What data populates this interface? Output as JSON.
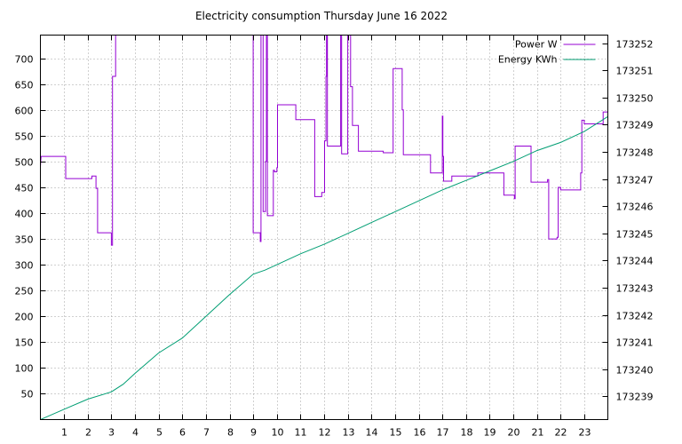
{
  "chart_data": {
    "type": "line",
    "title": "Electricity consumption Thursday June 16 2022",
    "xlabel": "",
    "ylabel": "",
    "y2label": "",
    "x_range": [
      0,
      24
    ],
    "x_ticks": [
      1,
      2,
      3,
      4,
      5,
      6,
      7,
      8,
      9,
      10,
      11,
      12,
      13,
      14,
      15,
      16,
      17,
      18,
      19,
      20,
      21,
      22,
      23
    ],
    "ylim": [
      0,
      745
    ],
    "y_ticks": [
      50,
      100,
      150,
      200,
      250,
      300,
      350,
      400,
      450,
      500,
      550,
      600,
      650,
      700
    ],
    "y2lim": [
      173238.15,
      173252.3
    ],
    "y2_ticks": [
      173239,
      173240,
      173241,
      173242,
      173243,
      173244,
      173245,
      173246,
      173247,
      173248,
      173249,
      173250,
      173251,
      173252
    ],
    "grid": true,
    "legend_position": "top-right",
    "series": [
      {
        "name": "Power W",
        "axis": "y1",
        "color": "#9400d3",
        "points": [
          [
            0,
            490
          ],
          [
            0.03,
            510
          ],
          [
            1.07,
            510
          ],
          [
            1.07,
            467
          ],
          [
            2.18,
            467
          ],
          [
            2.18,
            472
          ],
          [
            2.35,
            472
          ],
          [
            2.35,
            448
          ],
          [
            2.42,
            448
          ],
          [
            2.42,
            362
          ],
          [
            3.0,
            362
          ],
          [
            3.0,
            338
          ],
          [
            3.05,
            338
          ],
          [
            3.05,
            665
          ],
          [
            3.18,
            665
          ],
          [
            3.18,
            745
          ],
          [
            9.0,
            745
          ],
          [
            9.0,
            362
          ],
          [
            9.3,
            362
          ],
          [
            9.3,
            345
          ],
          [
            9.33,
            345
          ],
          [
            9.33,
            745
          ],
          [
            9.42,
            745
          ],
          [
            9.42,
            403
          ],
          [
            9.52,
            403
          ],
          [
            9.52,
            500
          ],
          [
            9.56,
            500
          ],
          [
            9.56,
            745
          ],
          [
            9.6,
            745
          ],
          [
            9.6,
            395
          ],
          [
            9.85,
            395
          ],
          [
            9.85,
            483
          ],
          [
            9.9,
            483
          ],
          [
            9.9,
            480
          ],
          [
            10.0,
            480
          ],
          [
            10.0,
            488
          ],
          [
            10.03,
            488
          ],
          [
            10.03,
            610
          ],
          [
            10.8,
            610
          ],
          [
            10.8,
            581
          ],
          [
            11.6,
            581
          ],
          [
            11.6,
            432
          ],
          [
            11.9,
            432
          ],
          [
            11.9,
            440
          ],
          [
            12.02,
            440
          ],
          [
            12.02,
            540
          ],
          [
            12.08,
            540
          ],
          [
            12.08,
            665
          ],
          [
            12.1,
            665
          ],
          [
            12.1,
            745
          ],
          [
            12.14,
            745
          ],
          [
            12.14,
            530
          ],
          [
            12.7,
            530
          ],
          [
            12.7,
            745
          ],
          [
            12.74,
            745
          ],
          [
            12.74,
            515
          ],
          [
            13.0,
            515
          ],
          [
            13.0,
            745
          ],
          [
            13.1,
            745
          ],
          [
            13.1,
            745
          ],
          [
            13.12,
            745
          ],
          [
            13.12,
            645
          ],
          [
            13.2,
            645
          ],
          [
            13.2,
            570
          ],
          [
            13.45,
            570
          ],
          [
            13.45,
            520
          ],
          [
            14.5,
            520
          ],
          [
            14.5,
            517
          ],
          [
            14.92,
            517
          ],
          [
            14.92,
            680
          ],
          [
            15.3,
            680
          ],
          [
            15.3,
            600
          ],
          [
            15.35,
            600
          ],
          [
            15.35,
            513
          ],
          [
            16.5,
            513
          ],
          [
            16.5,
            478
          ],
          [
            17.0,
            478
          ],
          [
            17.0,
            588
          ],
          [
            17.02,
            588
          ],
          [
            17.02,
            510
          ],
          [
            17.05,
            510
          ],
          [
            17.05,
            462
          ],
          [
            17.4,
            462
          ],
          [
            17.4,
            472
          ],
          [
            18.5,
            472
          ],
          [
            18.5,
            478
          ],
          [
            19.6,
            478
          ],
          [
            19.6,
            435
          ],
          [
            20.05,
            435
          ],
          [
            20.05,
            428
          ],
          [
            20.08,
            428
          ],
          [
            20.08,
            530
          ],
          [
            20.75,
            530
          ],
          [
            20.75,
            460
          ],
          [
            21.45,
            460
          ],
          [
            21.45,
            465
          ],
          [
            21.5,
            465
          ],
          [
            21.5,
            350
          ],
          [
            21.85,
            350
          ],
          [
            21.85,
            353
          ],
          [
            21.9,
            353
          ],
          [
            21.9,
            450
          ],
          [
            22.0,
            450
          ],
          [
            22.0,
            445
          ],
          [
            22.85,
            445
          ],
          [
            22.85,
            478
          ],
          [
            22.9,
            478
          ],
          [
            22.9,
            580
          ],
          [
            23.0,
            580
          ],
          [
            23.0,
            573
          ],
          [
            23.8,
            573
          ],
          [
            23.8,
            596
          ],
          [
            24.0,
            596
          ]
        ]
      },
      {
        "name": "Energy KWh",
        "axis": "y2",
        "color": "#009e73",
        "points": [
          [
            0,
            173238.15
          ],
          [
            1,
            173238.53
          ],
          [
            2,
            173238.9
          ],
          [
            3,
            173239.17
          ],
          [
            3.5,
            173239.45
          ],
          [
            4,
            173239.85
          ],
          [
            5,
            173240.6
          ],
          [
            6,
            173241.15
          ],
          [
            7,
            173241.95
          ],
          [
            8,
            173242.75
          ],
          [
            9,
            173243.5
          ],
          [
            9.5,
            173243.65
          ],
          [
            10,
            173243.85
          ],
          [
            11,
            173244.25
          ],
          [
            12,
            173244.6
          ],
          [
            13,
            173245.0
          ],
          [
            14,
            173245.4
          ],
          [
            15,
            173245.8
          ],
          [
            16,
            173246.2
          ],
          [
            17,
            173246.6
          ],
          [
            18,
            173246.95
          ],
          [
            19,
            173247.3
          ],
          [
            20,
            173247.65
          ],
          [
            21,
            173248.05
          ],
          [
            22,
            173248.35
          ],
          [
            23,
            173248.75
          ],
          [
            24,
            173249.3
          ]
        ]
      }
    ]
  }
}
